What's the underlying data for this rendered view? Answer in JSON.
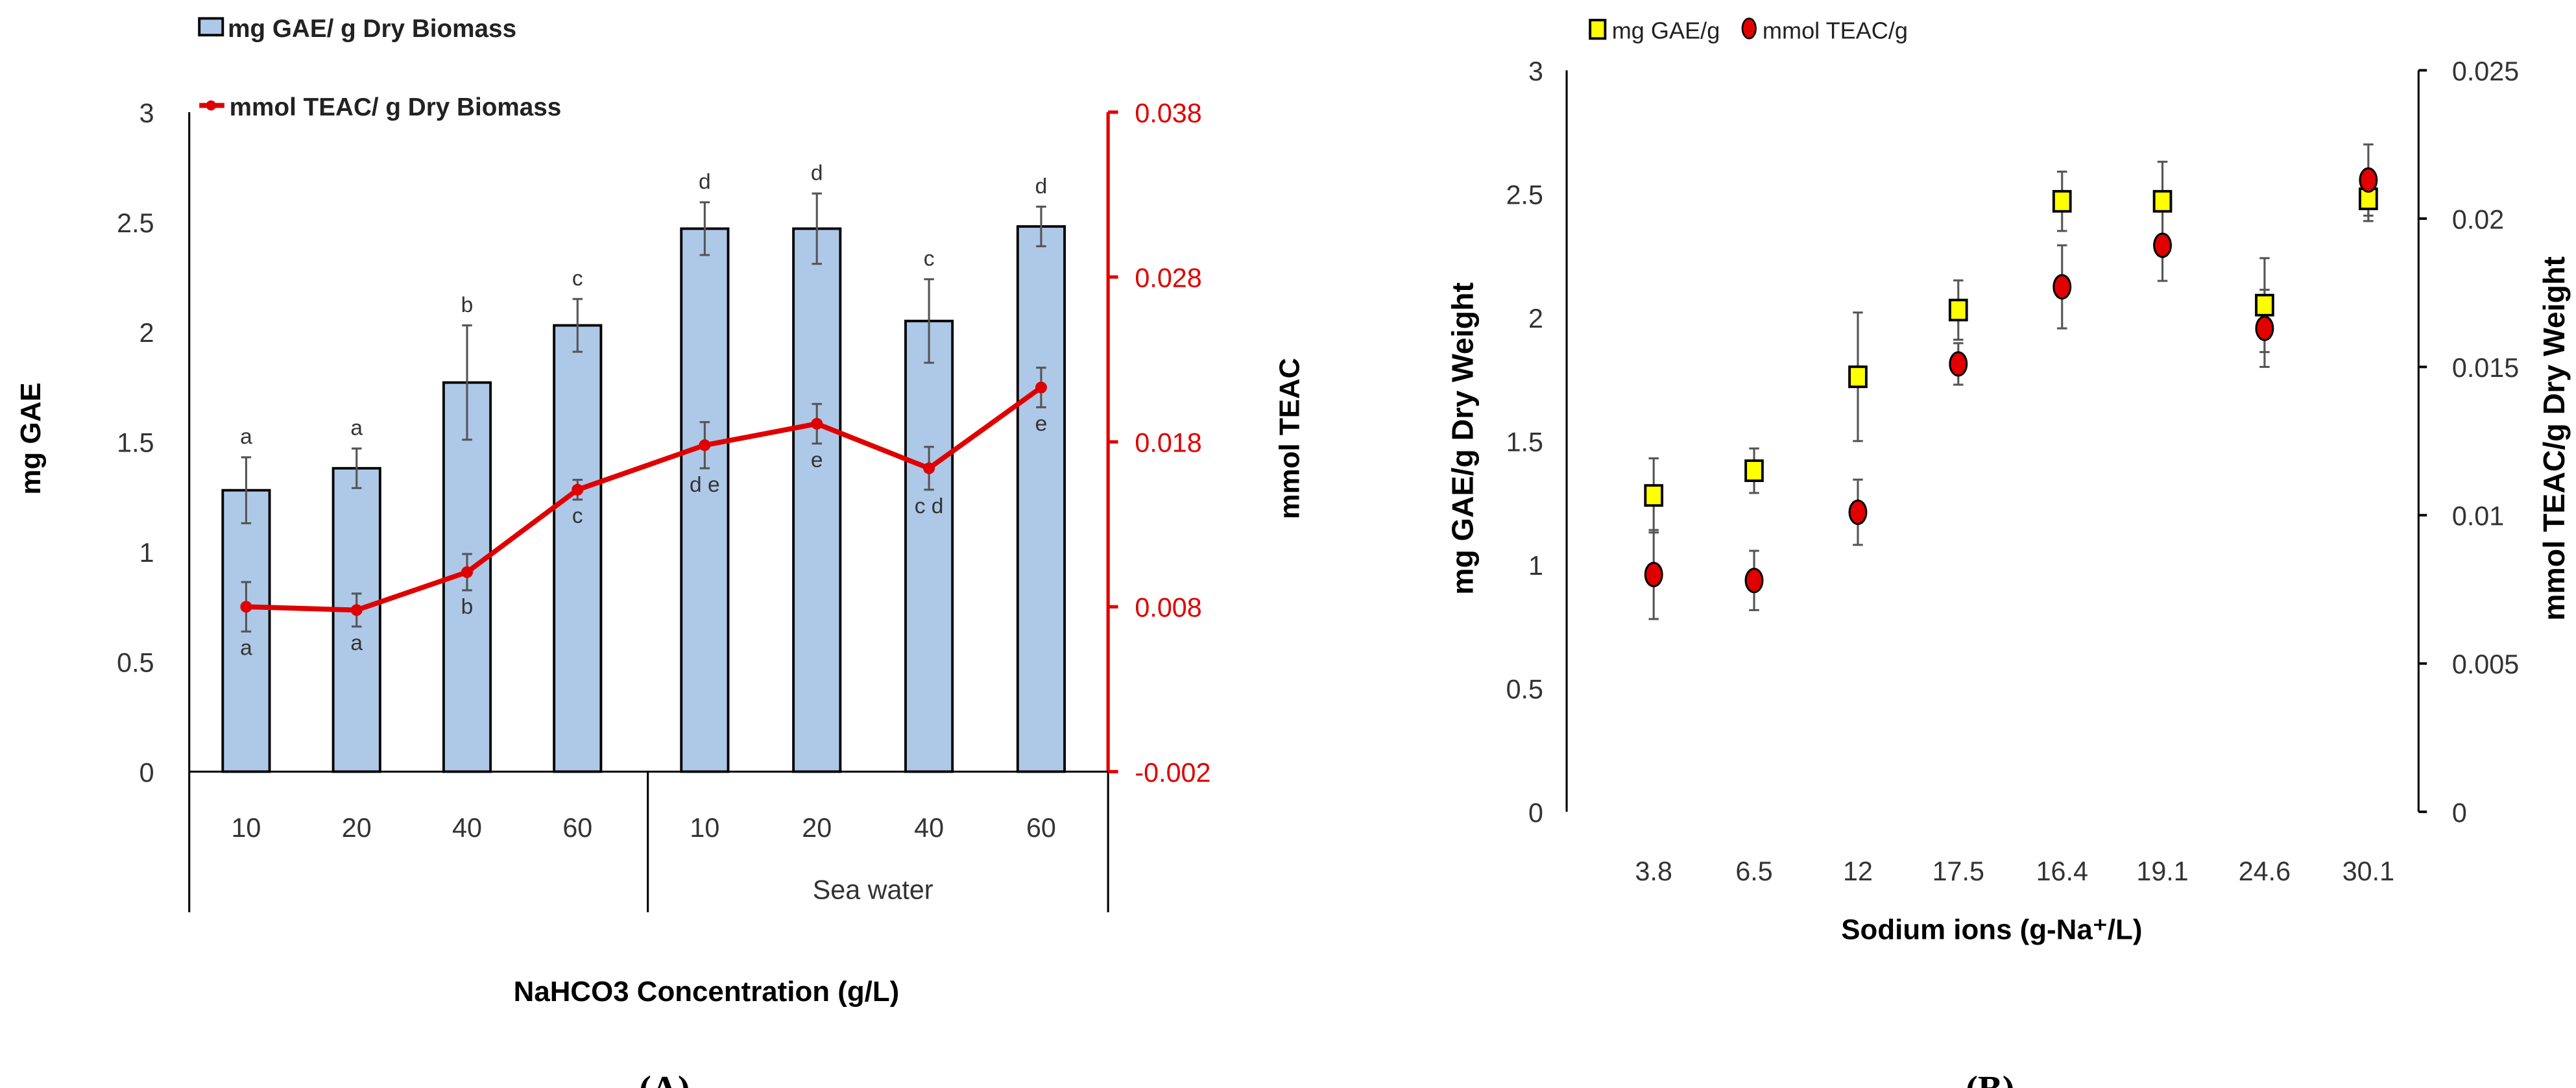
{
  "chart_data": [
    {
      "type": "bar",
      "panel_label": "(A)",
      "categories": [
        "10",
        "20",
        "40",
        "60",
        "10",
        "20",
        "40",
        "60"
      ],
      "groups": [
        {
          "label": "",
          "span": [
            0,
            3
          ]
        },
        {
          "label": "Sea water",
          "span": [
            4,
            7
          ]
        }
      ],
      "xlabel": "NaHCO3 Concentration (g/L)",
      "ylabel": "mg GAE",
      "y2label": "mmol TEAC",
      "ylim": [
        0,
        3
      ],
      "yticks": [
        "0",
        "0.5",
        "1",
        "1.5",
        "2",
        "2.5",
        "3"
      ],
      "y2lim": [
        -0.002,
        0.038
      ],
      "y2ticks": [
        "-0.002",
        "0.008",
        "0.018",
        "0.028",
        "0.038"
      ],
      "series": [
        {
          "name": "mg GAE/ g Dry Biomass",
          "kind": "bar",
          "axis": "left",
          "color": "#aec8e8",
          "values": [
            1.28,
            1.38,
            1.77,
            2.03,
            2.47,
            2.47,
            2.05,
            2.48
          ],
          "errors": [
            0.15,
            0.09,
            0.26,
            0.12,
            0.12,
            0.16,
            0.19,
            0.09
          ],
          "letters": [
            "a",
            "a",
            "b",
            "c",
            "d",
            "d",
            "c",
            "d"
          ]
        },
        {
          "name": "mmol TEAC/ g Dry Biomass",
          "kind": "line",
          "axis": "right",
          "color": "#e00000",
          "values": [
            0.008,
            0.0078,
            0.0101,
            0.0151,
            0.0178,
            0.0191,
            0.0164,
            0.0213
          ],
          "errors": [
            0.0015,
            0.001,
            0.0011,
            0.0006,
            0.0014,
            0.0012,
            0.0013,
            0.0012
          ],
          "letters": [
            "a",
            "a",
            "b",
            "c",
            "d e",
            "e",
            "c d",
            "e"
          ]
        }
      ]
    },
    {
      "type": "scatter",
      "panel_label": "(B)",
      "categories": [
        "3.8",
        "6.5",
        "12",
        "17.5",
        "16.4",
        "19.1",
        "24.6",
        "30.1"
      ],
      "xlabel": "Sodium ions (g-Na⁺/L)",
      "ylabel": "mg GAE/g Dry Weight",
      "y2label": "mmol TEAC/g Dry Weight",
      "ylim": [
        0,
        3
      ],
      "yticks": [
        "0",
        "0.5",
        "1",
        "1.5",
        "2",
        "2.5",
        "3"
      ],
      "y2lim": [
        0,
        0.025
      ],
      "y2ticks": [
        "0",
        "0.005",
        "0.01",
        "0.015",
        "0.02",
        "0.025"
      ],
      "series": [
        {
          "name": "mg GAE/g",
          "marker": "square",
          "axis": "left",
          "color": "#ffff00",
          "values": [
            1.28,
            1.38,
            1.76,
            2.03,
            2.47,
            2.47,
            2.05,
            2.48
          ],
          "errors": [
            0.15,
            0.09,
            0.26,
            0.12,
            0.12,
            0.16,
            0.19,
            0.09
          ]
        },
        {
          "name": "mmol TEAC/g",
          "marker": "circle",
          "axis": "right",
          "color": "#e00000",
          "values": [
            0.008,
            0.0078,
            0.0101,
            0.0151,
            0.0177,
            0.0191,
            0.0163,
            0.0213
          ],
          "errors": [
            0.0015,
            0.001,
            0.0011,
            0.0007,
            0.0014,
            0.0012,
            0.0013,
            0.0012
          ]
        }
      ]
    }
  ]
}
